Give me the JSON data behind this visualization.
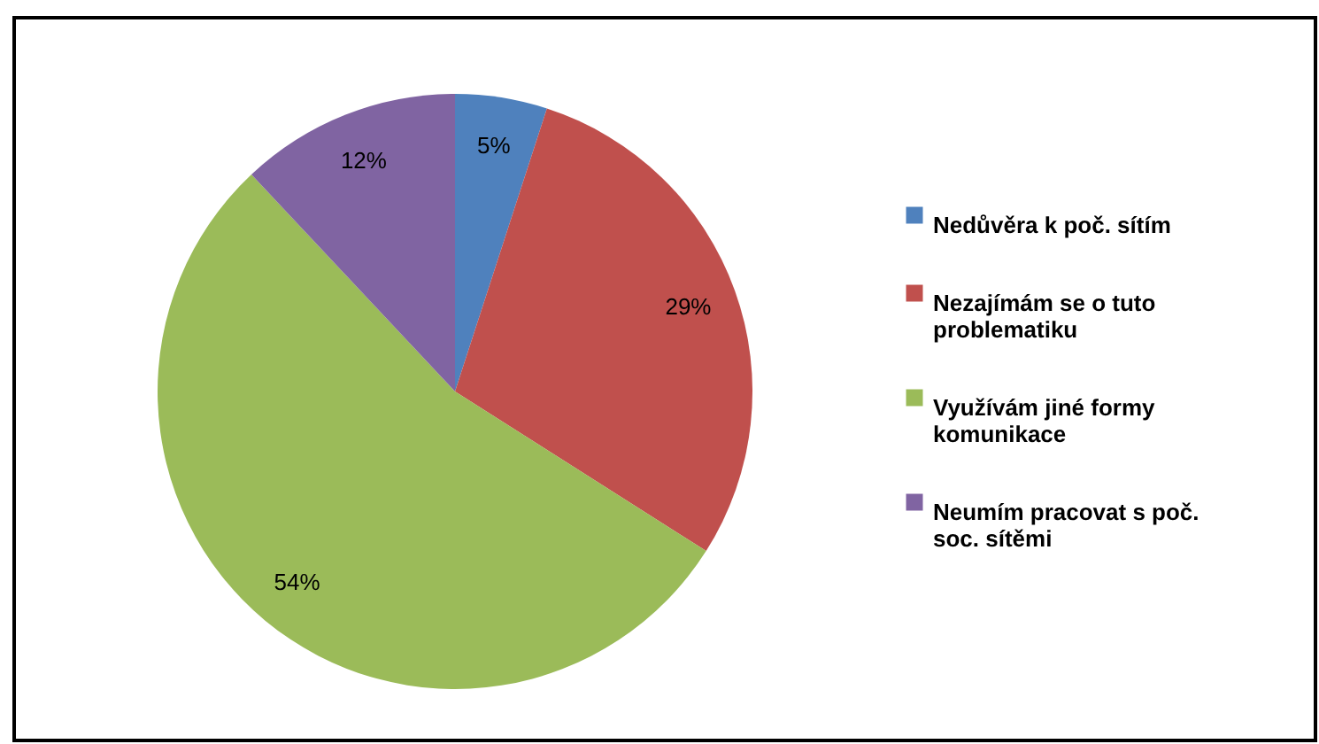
{
  "chart_data": {
    "type": "pie",
    "categories": [
      "Nedůvěra k poč. sítím",
      "Nezajímám se o tuto problematiku",
      "Využívám jiné formy komunikace",
      "Neumím pracovat s poč. soc. sítěmi"
    ],
    "values": [
      5,
      29,
      54,
      12
    ],
    "colors": [
      "#4f81bd",
      "#c0504d",
      "#9bbb59",
      "#8064a2"
    ],
    "value_labels": [
      "5%",
      "29%",
      "54%",
      "12%"
    ],
    "legend": "right"
  }
}
